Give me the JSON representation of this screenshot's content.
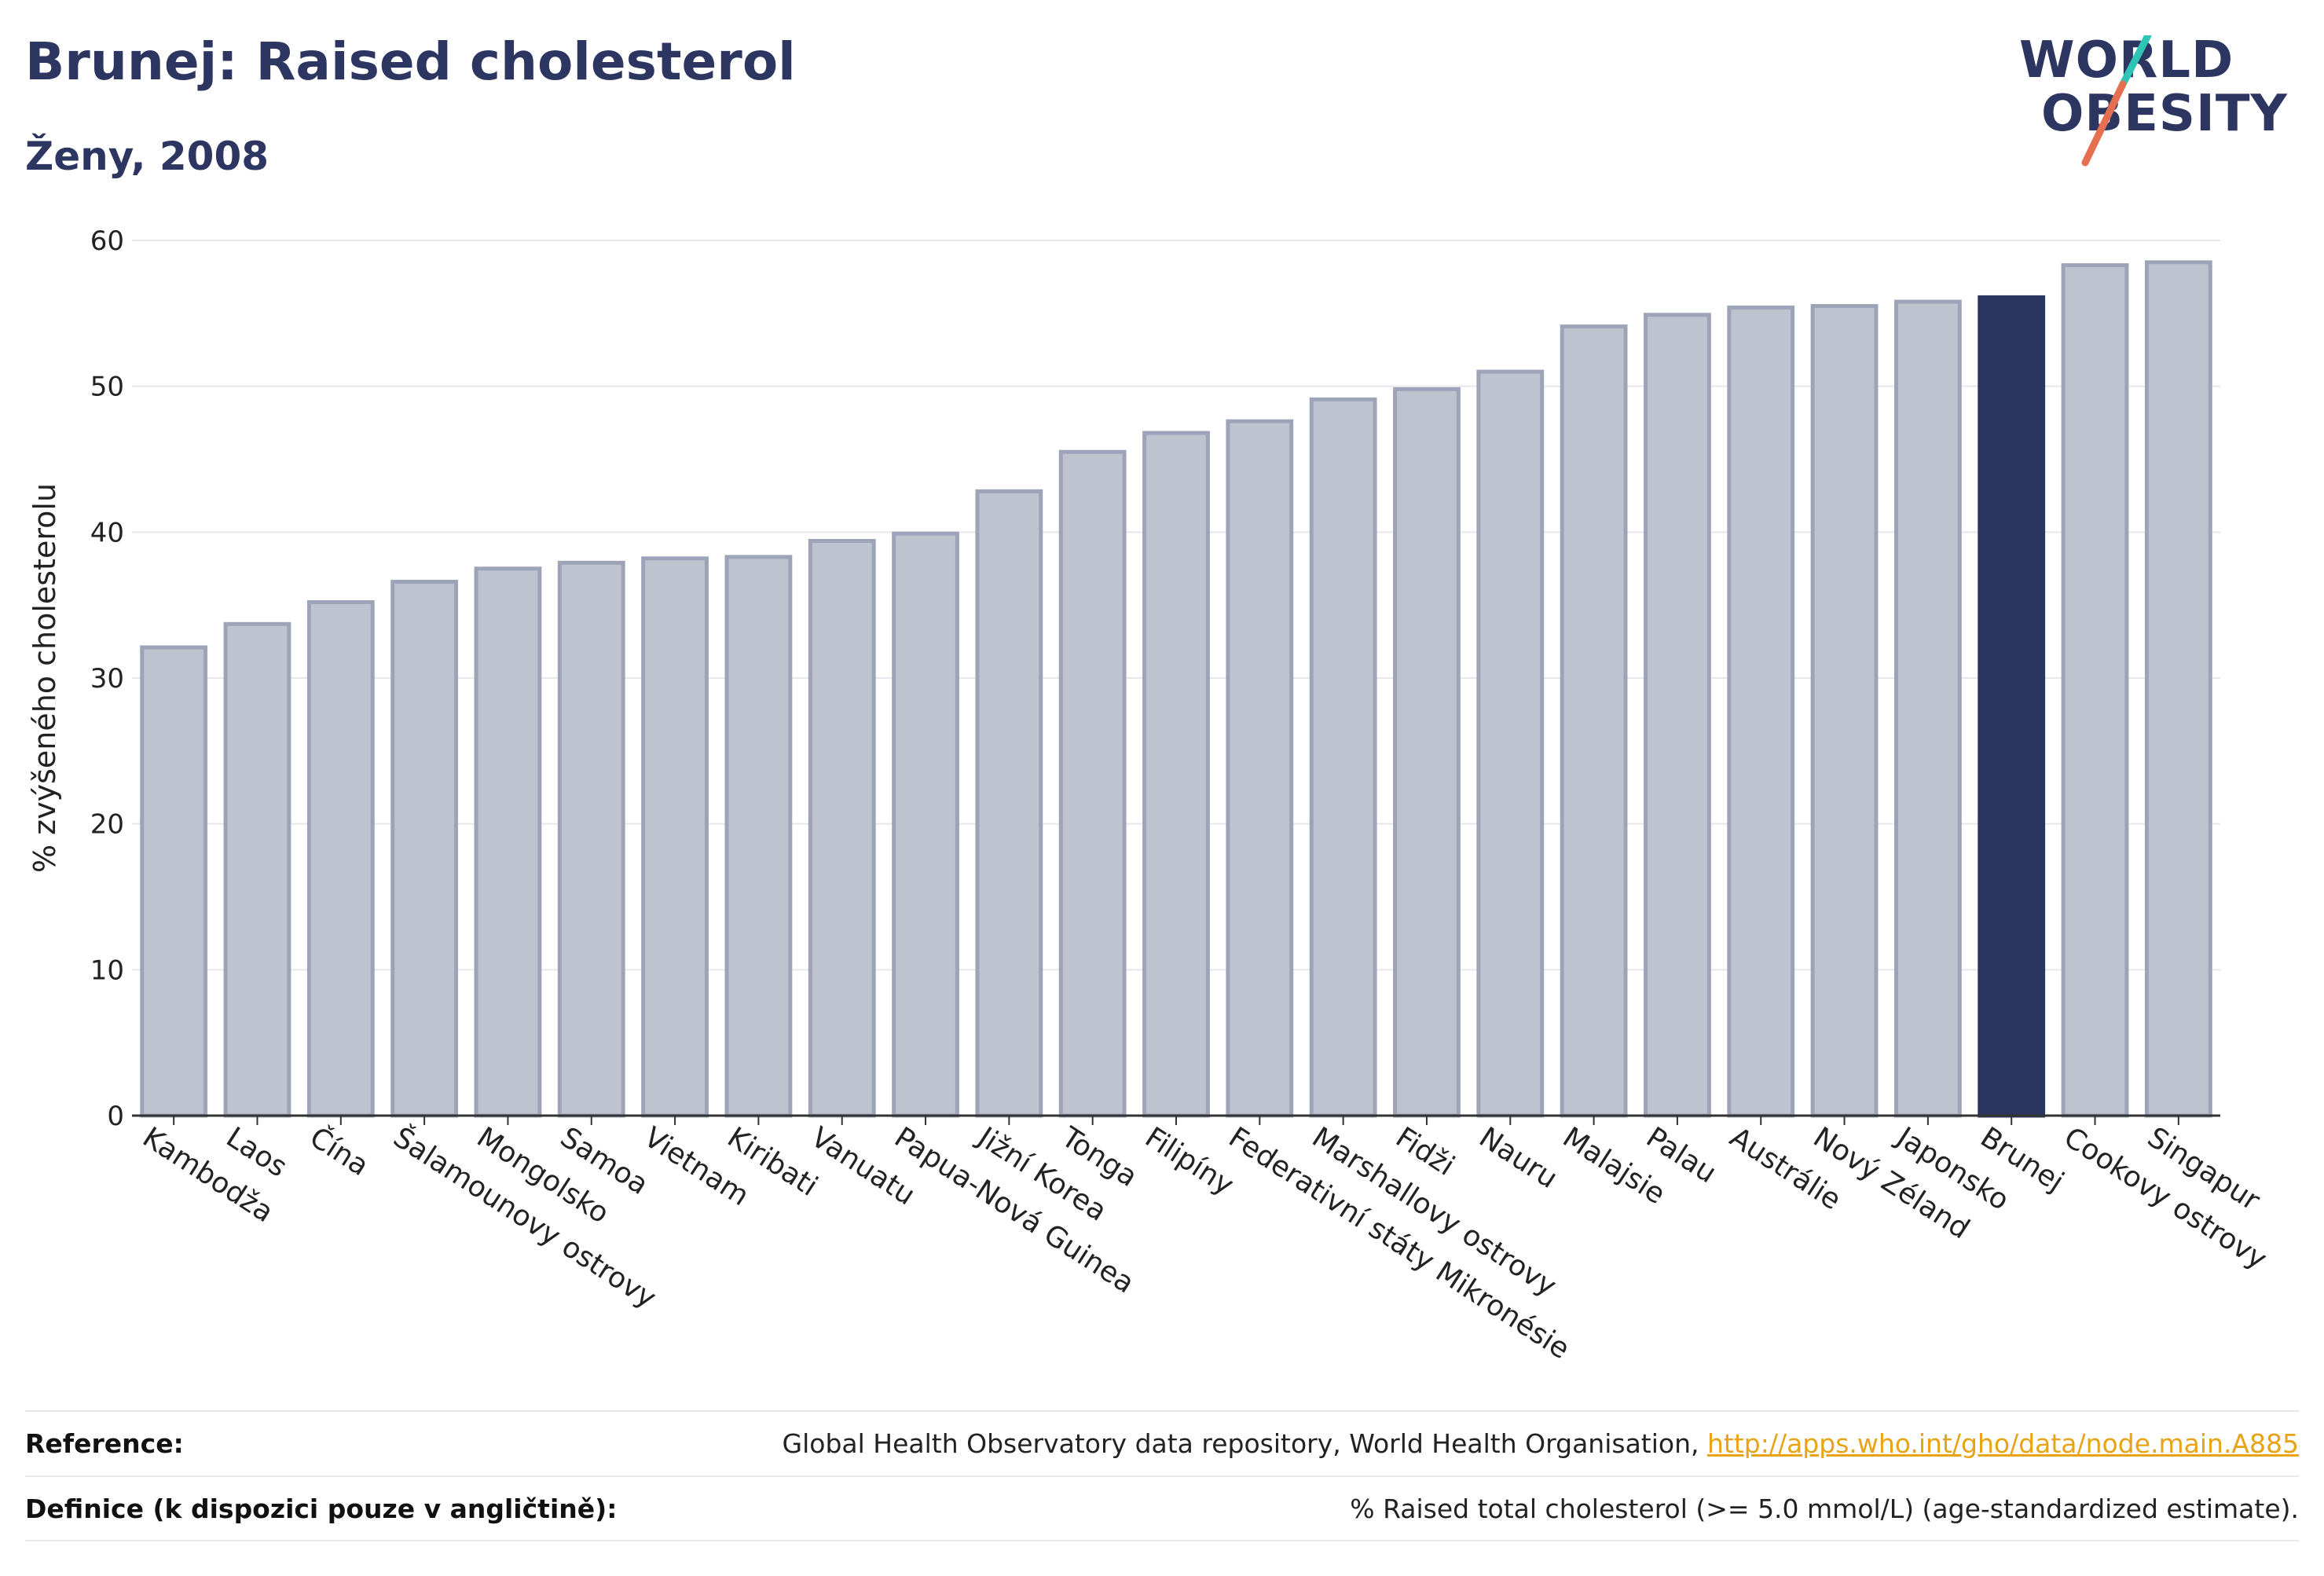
{
  "header": {
    "title": "Brunej: Raised cholesterol",
    "subtitle": "Ženy, 2008"
  },
  "logo": {
    "line1": "WORLD",
    "line2": "OBESITY",
    "accent_colors": [
      "#2ec4b6",
      "#e76f51"
    ]
  },
  "colors": {
    "bar_default": "#bfc3d0",
    "bar_border": "#9ea4b8",
    "bar_highlight": "#2a3560",
    "text": "#222222",
    "grid": "#e6e8ec"
  },
  "chart_data": {
    "type": "bar",
    "ylabel": "% zvýšeného cholesterolu",
    "ylim": [
      0,
      60
    ],
    "yticks": [
      0,
      10,
      20,
      30,
      40,
      50,
      60
    ],
    "grid": true,
    "highlight": "Brunej",
    "categories": [
      "Kambodža",
      "Laos",
      "Čína",
      "Šalamounovy ostrovy",
      "Mongolsko",
      "Samoa",
      "Vietnam",
      "Kiribati",
      "Vanuatu",
      "Papua-Nová Guinea",
      "Jižní Korea",
      "Tonga",
      "Filipíny",
      "Federativní státy Mikronésie",
      "Marshallovy ostrovy",
      "Fidži",
      "Nauru",
      "Malajsie",
      "Palau",
      "Austrálie",
      "Nový Zéland",
      "Japonsko",
      "Brunej",
      "Cookovy ostrovy",
      "Singapur"
    ],
    "values": [
      32.1,
      33.7,
      35.2,
      36.6,
      37.5,
      37.9,
      38.2,
      38.3,
      39.4,
      39.9,
      42.8,
      45.5,
      46.8,
      47.6,
      49.1,
      49.8,
      51.0,
      54.1,
      54.9,
      55.4,
      55.5,
      55.8,
      56.1,
      58.3,
      58.5
    ]
  },
  "footer": {
    "reference_label": "Reference:",
    "reference_text": "Global Health Observatory data repository, World Health Organisation, ",
    "reference_link": "http://apps.who.int/gho/data/node.main.A885",
    "definition_label": "Definice (k dispozici pouze v angličtině):",
    "definition_text": "% Raised total cholesterol (>= 5.0 mmol/L) (age-standardized estimate)."
  }
}
